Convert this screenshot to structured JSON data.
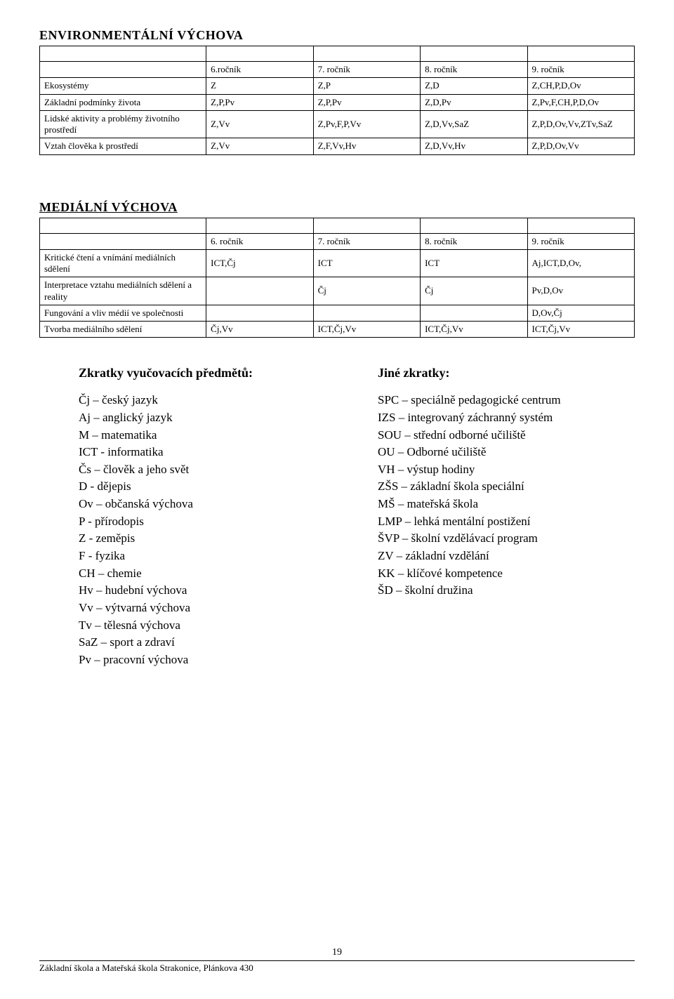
{
  "env": {
    "title": "ENVIRONMENTÁLNÍ  VÝCHOVA",
    "headers": [
      "6.ročník",
      "7. ročník",
      "8. ročník",
      "9. ročník"
    ],
    "rows": [
      {
        "label": "Ekosystémy",
        "cells": [
          "Z",
          "Z,P",
          "Z,D",
          "Z,CH,P,D,Ov"
        ]
      },
      {
        "label": "Základní podmínky života",
        "cells": [
          "Z,P,Pv",
          "Z,P,Pv",
          "Z,D,Pv",
          "Z,Pv,F,CH,P,D,Ov"
        ]
      },
      {
        "label": "Lidské aktivity a problémy životního prostředí",
        "cells": [
          "Z,Vv",
          "Z,Pv,F,P,Vv",
          "Z,D,Vv,SaZ",
          "Z,P,D,Ov,Vv,ZTv,SaZ"
        ]
      },
      {
        "label": "Vztah člověka k prostředí",
        "cells": [
          "Z,Vv",
          "Z,F,Vv,Hv",
          "Z,D,Vv,Hv",
          "Z,P,D,Ov,Vv"
        ]
      }
    ]
  },
  "med": {
    "title": "MEDIÁLNÍ  VÝCHOVA",
    "headers": [
      "6. ročník",
      "7. ročník",
      "8. ročník",
      "9. ročník"
    ],
    "rows": [
      {
        "label": "Kritické čtení a vnímání mediálních sdělení",
        "cells": [
          "ICT,Čj",
          "ICT",
          "ICT",
          "Aj,ICT,D,Ov,"
        ]
      },
      {
        "label": "Interpretace vztahu mediálních sdělení a reality",
        "cells": [
          "",
          "Čj",
          "Čj",
          "Pv,D,Ov"
        ]
      },
      {
        "label": "Fungování a vliv médií ve společnosti",
        "cells": [
          "",
          "",
          "",
          "D,Ov,Čj"
        ]
      },
      {
        "label": "Tvorba mediálního sdělení",
        "cells": [
          "Čj,Vv",
          "ICT,Čj,Vv",
          "ICT,Čj,Vv",
          "ICT,Čj,Vv"
        ]
      }
    ]
  },
  "zk": {
    "left_heading": "Zkratky vyučovacích předmětů:",
    "right_heading": "Jiné zkratky:",
    "left": [
      "Čj   – český jazyk",
      "Aj   – anglický jazyk",
      "M   – matematika",
      "ICT     - informatika",
      "Čs  – člověk a jeho svět",
      "D    - dějepis",
      "Ov – občanská výchova",
      "P    - přírodopis",
      "Z    - zeměpis",
      "F    - fyzika",
      "CH – chemie",
      "Hv  – hudební výchova",
      "Vv  – výtvarná výchova",
      "Tv  – tělesná výchova",
      "SaZ – sport a zdraví",
      "Pv   – pracovní výchova"
    ],
    "right": [
      "SPC – speciálně pedagogické centrum",
      "IZS – integrovaný záchranný systém",
      "SOU – střední odborné učiliště",
      "OU – Odborné učiliště",
      "VH – výstup hodiny",
      "ZŠS – základní škola speciální",
      "MŠ – mateřská škola",
      "LMP – lehká mentální postižení",
      "ŠVP – školní vzdělávací program",
      "ZV – základní vzdělání",
      "KK – klíčové kompetence",
      "ŠD – školní družina"
    ]
  },
  "footer": {
    "page": "19",
    "school": "Základní škola a Mateřská škola Strakonice, Plánkova 430"
  }
}
